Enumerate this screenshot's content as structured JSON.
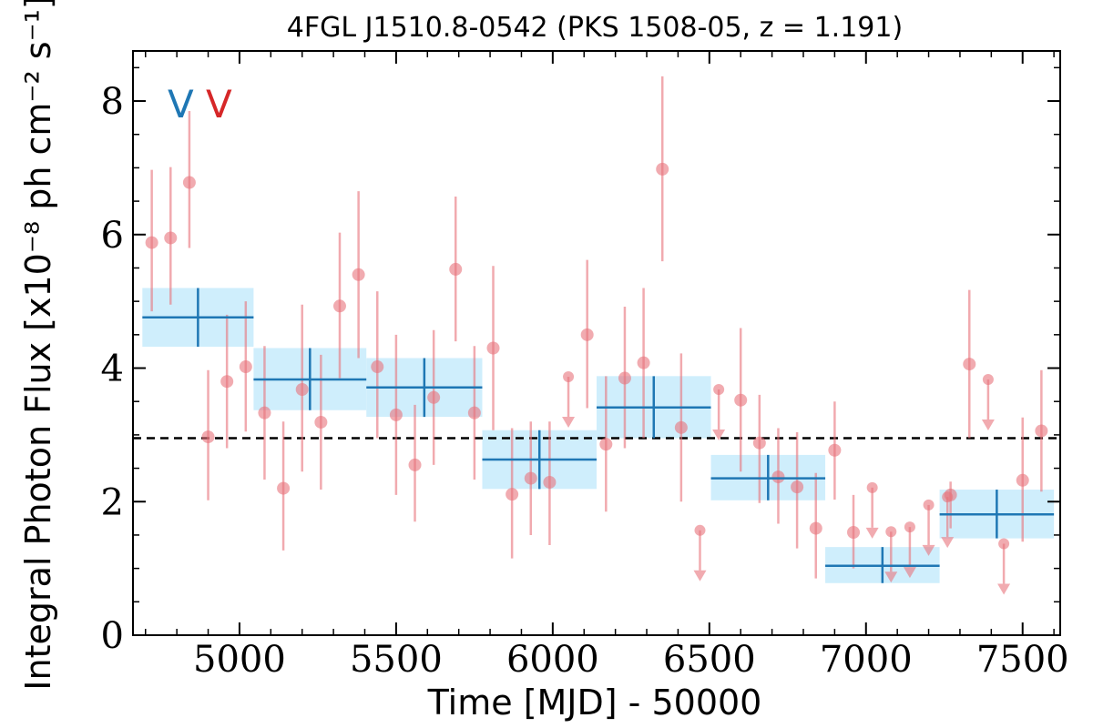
{
  "chart_data": {
    "type": "scatter",
    "title": "4FGL J1510.8-0542 (PKS 1508-05, z = 1.191)",
    "xlabel": "Time [MJD] - 50000",
    "ylabel": "Integral Photon Flux [x10⁻⁸ ph cm⁻² s⁻¹]",
    "xlim": [
      4660,
      7620
    ],
    "ylim": [
      0,
      8.75
    ],
    "x_ticks": [
      5000,
      5500,
      6000,
      6500,
      7000,
      7500
    ],
    "y_ticks": [
      0,
      2,
      4,
      6,
      8
    ],
    "grid": false,
    "legend_markers": [
      "V",
      "V"
    ],
    "mean_flux": 2.95,
    "colors": {
      "fine": "#e8737b",
      "coarse": "#1f77b4",
      "band": "#cfeefc",
      "mean": "#000000",
      "marker_blue": "#1f77b4",
      "marker_red": "#d62728"
    },
    "series": [
      {
        "binning": "fine",
        "points": [
          {
            "x": 4720,
            "y": 5.88,
            "lo": 4.85,
            "hi": 6.97
          },
          {
            "x": 4780,
            "y": 5.95,
            "lo": 4.95,
            "hi": 7.01
          },
          {
            "x": 4840,
            "y": 6.78,
            "lo": 5.8,
            "hi": 7.85
          },
          {
            "x": 4900,
            "y": 2.97,
            "lo": 2.02,
            "hi": 3.97
          },
          {
            "x": 4960,
            "y": 3.8,
            "lo": 2.8,
            "hi": 4.8
          },
          {
            "x": 5020,
            "y": 4.02,
            "lo": 3.05,
            "hi": 5.0
          },
          {
            "x": 5080,
            "y": 3.33,
            "lo": 2.33,
            "hi": 4.33
          },
          {
            "x": 5140,
            "y": 2.2,
            "lo": 1.27,
            "hi": 3.2
          },
          {
            "x": 5200,
            "y": 3.68,
            "lo": 2.45,
            "hi": 4.95
          },
          {
            "x": 5260,
            "y": 3.19,
            "lo": 2.18,
            "hi": 4.2
          },
          {
            "x": 5320,
            "y": 4.93,
            "lo": 3.85,
            "hi": 6.03
          },
          {
            "x": 5380,
            "y": 5.4,
            "lo": 4.15,
            "hi": 6.65
          },
          {
            "x": 5440,
            "y": 4.02,
            "lo": 2.95,
            "hi": 5.15
          },
          {
            "x": 5500,
            "y": 3.3,
            "lo": 2.1,
            "hi": 4.5
          },
          {
            "x": 5560,
            "y": 2.55,
            "lo": 1.7,
            "hi": 3.45
          },
          {
            "x": 5620,
            "y": 3.56,
            "lo": 2.55,
            "hi": 4.57
          },
          {
            "x": 5690,
            "y": 5.48,
            "lo": 4.4,
            "hi": 6.57
          },
          {
            "x": 5750,
            "y": 3.33,
            "lo": 2.33,
            "hi": 4.33
          },
          {
            "x": 5810,
            "y": 4.3,
            "lo": 3.07,
            "hi": 5.53
          },
          {
            "x": 5870,
            "y": 2.11,
            "lo": 1.15,
            "hi": 3.1
          },
          {
            "x": 5930,
            "y": 2.35,
            "lo": 1.5,
            "hi": 3.2
          },
          {
            "x": 5990,
            "y": 2.29,
            "lo": 1.35,
            "hi": 3.2
          },
          {
            "x": 6170,
            "y": 2.86,
            "lo": 1.85,
            "hi": 3.88
          },
          {
            "x": 6110,
            "y": 4.5,
            "lo": 3.4,
            "hi": 5.62
          },
          {
            "x": 6230,
            "y": 3.85,
            "lo": 2.8,
            "hi": 4.92
          },
          {
            "x": 6290,
            "y": 4.08,
            "lo": 2.95,
            "hi": 5.2
          },
          {
            "x": 6350,
            "y": 6.98,
            "lo": 5.6,
            "hi": 8.37
          },
          {
            "x": 6410,
            "y": 3.11,
            "lo": 2.0,
            "hi": 4.22
          },
          {
            "x": 6600,
            "y": 3.52,
            "lo": 2.45,
            "hi": 4.6
          },
          {
            "x": 6660,
            "y": 2.88,
            "lo": 1.98,
            "hi": 3.6
          },
          {
            "x": 6720,
            "y": 2.37,
            "lo": 1.67,
            "hi": 3.1
          },
          {
            "x": 6780,
            "y": 2.22,
            "lo": 1.3,
            "hi": 3.04
          },
          {
            "x": 6840,
            "y": 1.6,
            "lo": 0.85,
            "hi": 2.43
          },
          {
            "x": 6900,
            "y": 2.77,
            "lo": 2.03,
            "hi": 3.5
          },
          {
            "x": 6960,
            "y": 1.54,
            "lo": 1.0,
            "hi": 2.1
          },
          {
            "x": 7270,
            "y": 2.1,
            "lo": 1.6,
            "hi": 2.3
          },
          {
            "x": 7330,
            "y": 4.06,
            "lo": 2.95,
            "hi": 5.17
          },
          {
            "x": 7500,
            "y": 2.32,
            "lo": 1.4,
            "hi": 3.26
          },
          {
            "x": 7560,
            "y": 3.06,
            "lo": 2.15,
            "hi": 3.97
          }
        ],
        "upper_limits": [
          {
            "x": 6050,
            "y": 3.87
          },
          {
            "x": 6470,
            "y": 1.57
          },
          {
            "x": 6530,
            "y": 3.68
          },
          {
            "x": 7020,
            "y": 2.21
          },
          {
            "x": 7080,
            "y": 1.55
          },
          {
            "x": 7140,
            "y": 1.62
          },
          {
            "x": 7200,
            "y": 1.95
          },
          {
            "x": 7260,
            "y": 2.07
          },
          {
            "x": 7390,
            "y": 3.83
          },
          {
            "x": 7440,
            "y": 1.37
          }
        ]
      },
      {
        "binning": "coarse",
        "bins": [
          {
            "x0": 4690,
            "x1": 5045,
            "y": 4.76,
            "lo": 4.32,
            "hi": 5.2
          },
          {
            "x0": 5045,
            "x1": 5405,
            "y": 3.83,
            "lo": 3.37,
            "hi": 4.3
          },
          {
            "x0": 5405,
            "x1": 5775,
            "y": 3.71,
            "lo": 3.27,
            "hi": 4.15
          },
          {
            "x0": 5775,
            "x1": 6140,
            "y": 2.63,
            "lo": 2.19,
            "hi": 3.07
          },
          {
            "x0": 6140,
            "x1": 6505,
            "y": 3.41,
            "lo": 2.95,
            "hi": 3.88
          },
          {
            "x0": 6505,
            "x1": 6870,
            "y": 2.35,
            "lo": 2.02,
            "hi": 2.7
          },
          {
            "x0": 6870,
            "x1": 7235,
            "y": 1.04,
            "lo": 0.78,
            "hi": 1.32
          },
          {
            "x0": 7235,
            "x1": 7600,
            "y": 1.81,
            "lo": 1.45,
            "hi": 2.18
          }
        ]
      }
    ]
  }
}
